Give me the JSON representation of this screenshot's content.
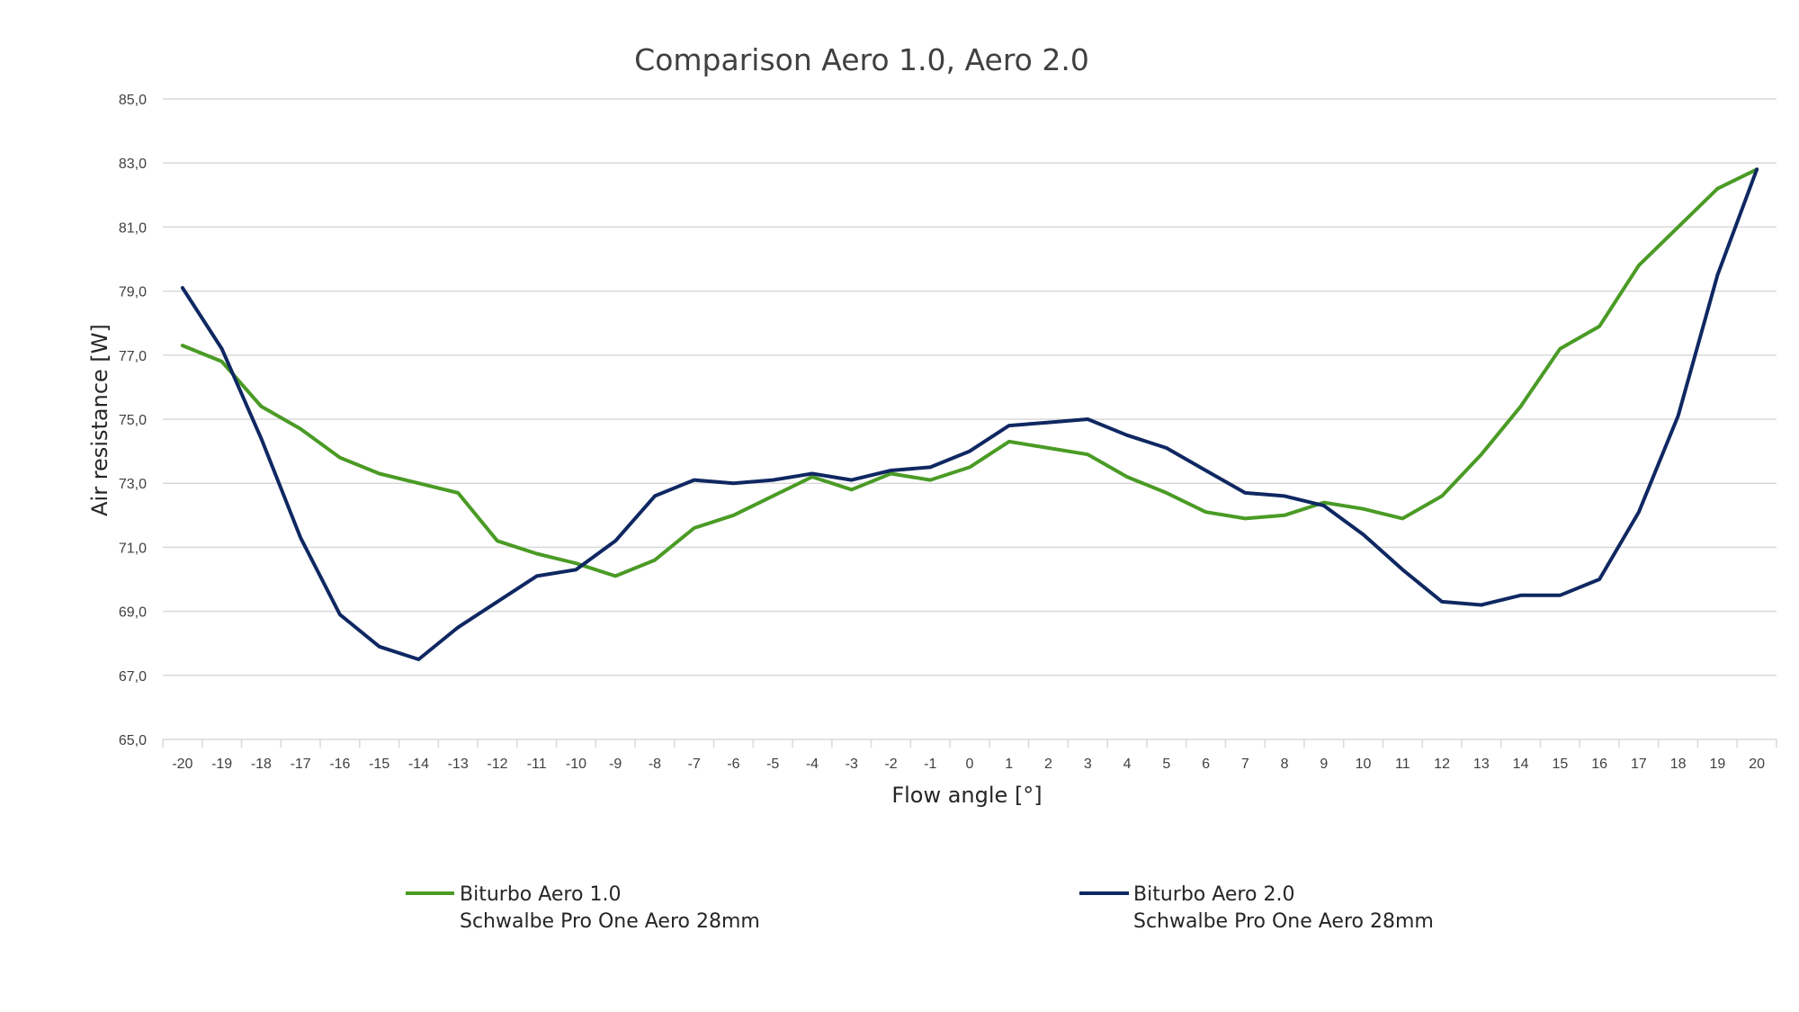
{
  "chart_data": {
    "type": "line",
    "title": "Comparison Aero 1.0, Aero 2.0",
    "xlabel": "Flow angle [°]",
    "ylabel": "Air resistance [W]",
    "ylim": [
      65,
      85
    ],
    "yticks": [
      "65,0",
      "67,0",
      "69,0",
      "71,0",
      "73,0",
      "75,0",
      "77,0",
      "79,0",
      "81,0",
      "83,0",
      "85,0"
    ],
    "grid": true,
    "legend_position": "bottom",
    "categories": [
      "-20",
      "-19",
      "-18",
      "-17",
      "-16",
      "-15",
      "-14",
      "-13",
      "-12",
      "-11",
      "-10",
      "-9",
      "-8",
      "-7",
      "-6",
      "-5",
      "-4",
      "-3",
      "-2",
      "-1",
      "0",
      "1",
      "2",
      "3",
      "4",
      "5",
      "6",
      "7",
      "8",
      "9",
      "10",
      "11",
      "12",
      "13",
      "14",
      "15",
      "16",
      "17",
      "18",
      "19",
      "20"
    ],
    "series": [
      {
        "name": "Biturbo Aero 1.0",
        "name_line2": "Schwalbe Pro One Aero 28mm",
        "color": "#4a9b25",
        "values": [
          77.3,
          76.8,
          75.4,
          74.7,
          73.8,
          73.3,
          73.0,
          72.7,
          71.2,
          70.8,
          70.5,
          70.1,
          70.6,
          71.6,
          72.0,
          72.6,
          73.2,
          72.8,
          73.3,
          73.1,
          73.5,
          74.3,
          74.1,
          73.9,
          73.2,
          72.7,
          72.1,
          71.9,
          72.0,
          72.4,
          72.2,
          71.9,
          72.6,
          73.9,
          75.4,
          77.2,
          77.9,
          79.8,
          81.0,
          82.2,
          82.8
        ]
      },
      {
        "name": "Biturbo Aero 2.0",
        "name_line2": "Schwalbe Pro One Aero 28mm",
        "color": "#0f2862",
        "values": [
          79.1,
          77.2,
          74.4,
          71.3,
          68.9,
          67.9,
          67.5,
          68.5,
          69.3,
          70.1,
          70.3,
          71.2,
          72.6,
          73.1,
          73.0,
          73.1,
          73.3,
          73.1,
          73.4,
          73.5,
          74.0,
          74.8,
          74.9,
          75.0,
          74.5,
          74.1,
          73.4,
          72.7,
          72.6,
          72.3,
          71.4,
          70.3,
          69.3,
          69.2,
          69.5,
          69.5,
          70.0,
          72.1,
          75.1,
          79.5,
          82.8
        ]
      }
    ]
  }
}
